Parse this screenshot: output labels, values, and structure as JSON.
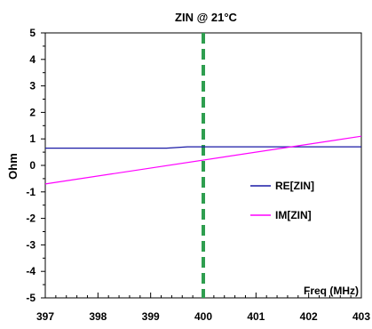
{
  "chart_data": {
    "type": "line",
    "title": "ZIN @ 21°C",
    "xlabel": "Freq (MHz)",
    "ylabel": "Ohm",
    "xlim": [
      397,
      403
    ],
    "ylim": [
      -5,
      5
    ],
    "x_ticks": [
      "397",
      "398",
      "399",
      "400",
      "401",
      "402",
      "403"
    ],
    "y_ticks": [
      "5",
      "4",
      "3",
      "2",
      "1",
      "0",
      "-1",
      "-2",
      "-3",
      "-4",
      "-5"
    ],
    "grid": false,
    "legend_position": "center-right",
    "marker_line": {
      "x": 400,
      "color": "#2e9e4f",
      "style": "dashed"
    },
    "series": [
      {
        "name": "RE[ZIN]",
        "color": "#1a1aa6",
        "x": [
          397,
          399.3,
          399.7,
          403
        ],
        "y": [
          0.65,
          0.65,
          0.7,
          0.7
        ]
      },
      {
        "name": "IM[ZIN]",
        "color": "#ff00ff",
        "x": [
          397,
          403
        ],
        "y": [
          -0.7,
          1.1
        ]
      }
    ]
  }
}
